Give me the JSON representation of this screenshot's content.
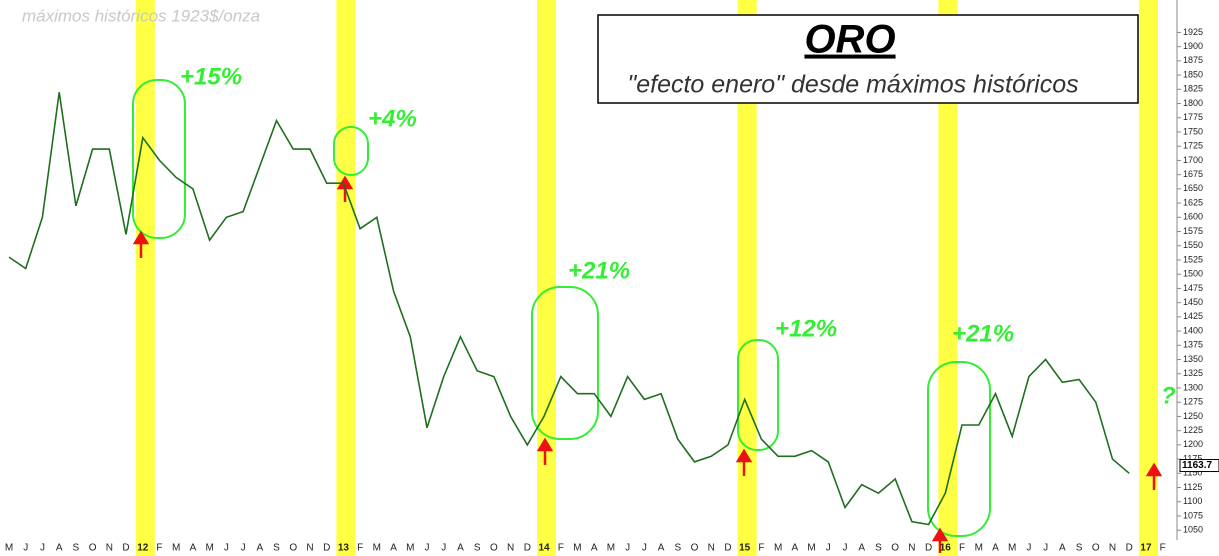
{
  "chart_data": {
    "type": "line",
    "title": "ORO",
    "subtitle": "\"efecto enero\" desde máximos históricos",
    "note": "máximos históricos 1923$/onza",
    "categories": [
      "M",
      "J",
      "J",
      "A",
      "S",
      "O",
      "N",
      "D",
      "12",
      "F",
      "M",
      "A",
      "M",
      "J",
      "J",
      "A",
      "S",
      "O",
      "N",
      "D",
      "13",
      "F",
      "M",
      "A",
      "M",
      "J",
      "J",
      "A",
      "S",
      "O",
      "N",
      "D",
      "14",
      "F",
      "M",
      "A",
      "M",
      "J",
      "J",
      "A",
      "S",
      "O",
      "N",
      "D",
      "15",
      "F",
      "M",
      "A",
      "M",
      "J",
      "J",
      "A",
      "S",
      "O",
      "N",
      "D",
      "16",
      "F",
      "M",
      "A",
      "M",
      "J",
      "J",
      "A",
      "S",
      "O",
      "N",
      "D",
      "17",
      "F"
    ],
    "values": [
      1530,
      1510,
      1600,
      1820,
      1620,
      1720,
      1720,
      1570,
      1740,
      1700,
      1670,
      1650,
      1560,
      1600,
      1610,
      1690,
      1770,
      1720,
      1720,
      1660,
      1660,
      1580,
      1600,
      1470,
      1390,
      1230,
      1320,
      1390,
      1330,
      1320,
      1250,
      1200,
      1250,
      1320,
      1290,
      1290,
      1250,
      1320,
      1280,
      1290,
      1210,
      1170,
      1180,
      1200,
      1280,
      1210,
      1180,
      1180,
      1190,
      1170,
      1090,
      1130,
      1115,
      1140,
      1065,
      1060,
      1115,
      1235,
      1235,
      1290,
      1215,
      1320,
      1350,
      1310,
      1315,
      1275,
      1175,
      1150,
      null,
      null
    ],
    "color": "#1f6f1f",
    "ylim": [
      1024,
      1982
    ],
    "yticks": [
      1050,
      1075,
      1100,
      1125,
      1150,
      1175,
      1200,
      1225,
      1250,
      1275,
      1300,
      1325,
      1350,
      1375,
      1400,
      1425,
      1450,
      1475,
      1500,
      1525,
      1550,
      1575,
      1600,
      1625,
      1650,
      1675,
      1700,
      1725,
      1750,
      1775,
      1800,
      1825,
      1850,
      1875,
      1900,
      1925
    ],
    "last_value": 1163.7,
    "annotations": [
      "+15%",
      "+4%",
      "+21%",
      "+12%",
      "+21%",
      "?"
    ]
  }
}
